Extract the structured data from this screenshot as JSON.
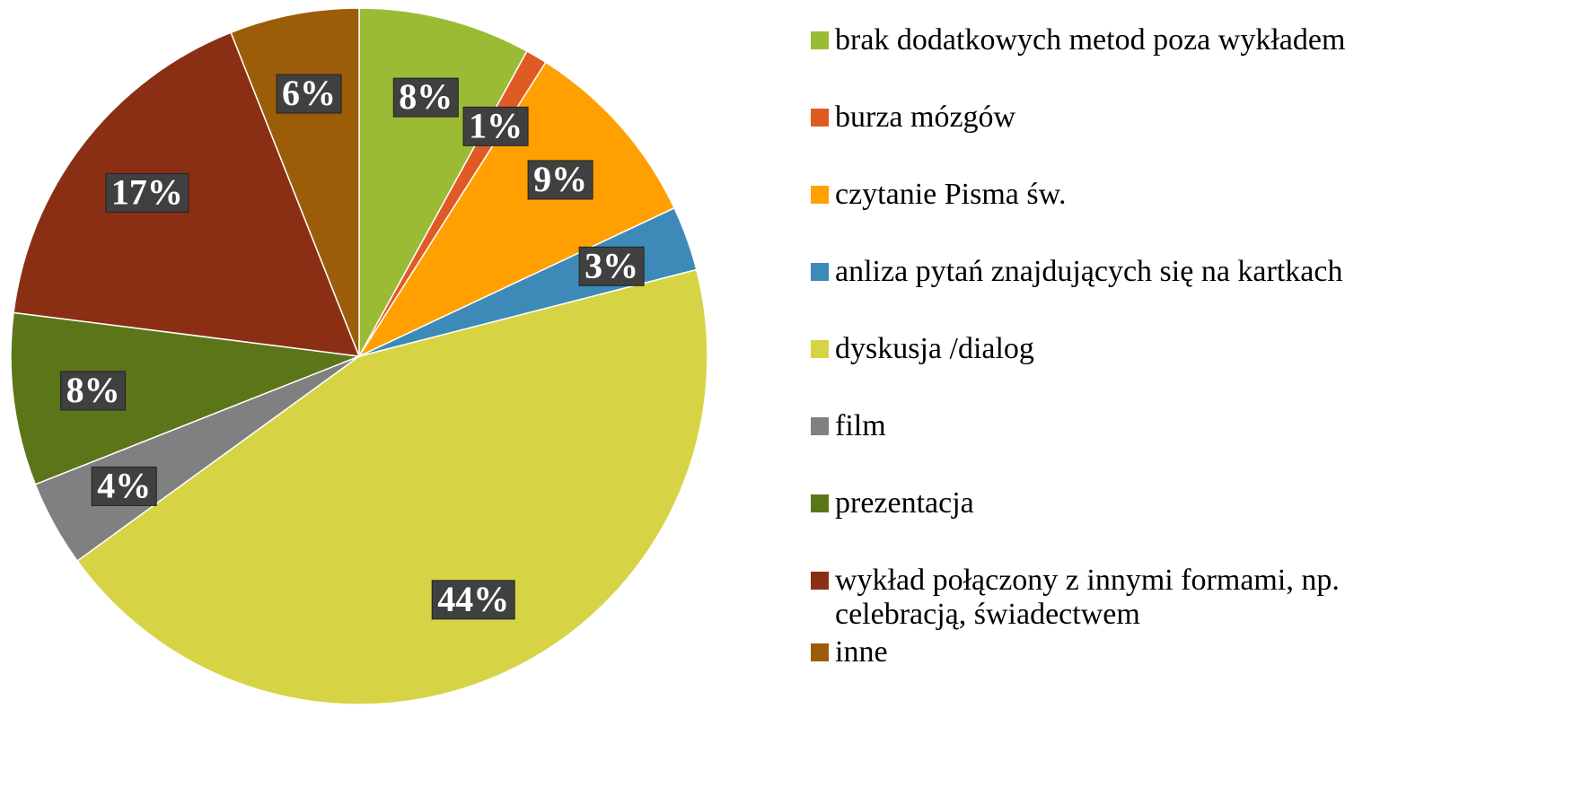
{
  "chart_data": {
    "type": "pie",
    "categories": [
      "brak dodatkowych metod poza wykładem",
      "burza mózgów",
      "czytanie Pisma św.",
      "anliza pytań znajdujących się na kartkach",
      "dyskusja /dialog",
      "film",
      "prezentacja",
      "wykład połączony z innymi formami, np. celebracją, świadectwem",
      "inne"
    ],
    "values": [
      8,
      1,
      9,
      3,
      44,
      4,
      8,
      17,
      6
    ],
    "value_labels": [
      "8%",
      "1%",
      "9%",
      "3%",
      "44%",
      "4%",
      "8%",
      "17%",
      "6%"
    ],
    "colors": [
      "#9bbb35",
      "#e05a24",
      "#ffa000",
      "#3d8ab8",
      "#d6d444",
      "#808080",
      "#5d7519",
      "#8b2f14",
      "#9c5d08"
    ],
    "legend": "right"
  }
}
